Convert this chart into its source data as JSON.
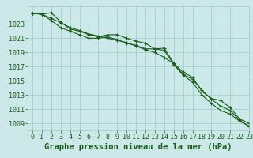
{
  "background_color": "#cce8e8",
  "grid_color": "#99cccc",
  "line_color": "#1a5c1a",
  "xlabel": "Graphe pression niveau de la mer (hPa)",
  "xlabel_fontsize": 7.5,
  "tick_fontsize": 6,
  "xlim": [
    -0.5,
    23
  ],
  "ylim": [
    1008.0,
    1025.5
  ],
  "yticks": [
    1009,
    1011,
    1013,
    1015,
    1017,
    1019,
    1021,
    1023
  ],
  "xticks": [
    0,
    1,
    2,
    3,
    4,
    5,
    6,
    7,
    8,
    9,
    10,
    11,
    12,
    13,
    14,
    15,
    16,
    17,
    18,
    19,
    20,
    21,
    22,
    23
  ],
  "series": [
    [
      1024.5,
      1024.4,
      1023.8,
      1023.2,
      1022.5,
      1022.1,
      1021.6,
      1021.3,
      1021.0,
      1020.7,
      1020.4,
      1019.9,
      1019.4,
      1019.0,
      1018.3,
      1017.4,
      1015.9,
      1015.2,
      1013.7,
      1012.4,
      1011.4,
      1010.8,
      1009.4,
      1008.6
    ],
    [
      1024.5,
      1024.4,
      1023.5,
      1022.5,
      1022.0,
      1021.5,
      1021.0,
      1021.0,
      1021.2,
      1020.8,
      1020.3,
      1020.0,
      1019.5,
      1019.5,
      1019.3,
      1017.3,
      1015.8,
      1014.8,
      1013.0,
      1011.8,
      1010.8,
      1010.3,
      1009.3,
      1008.6
    ],
    [
      1024.5,
      1024.4,
      1024.6,
      1023.3,
      1022.3,
      1022.0,
      1021.5,
      1021.2,
      1021.5,
      1021.5,
      1021.0,
      1020.6,
      1020.3,
      1019.5,
      1019.6,
      1017.5,
      1016.2,
      1015.5,
      1013.5,
      1012.5,
      1012.2,
      1011.2,
      1009.6,
      1009.0
    ]
  ]
}
